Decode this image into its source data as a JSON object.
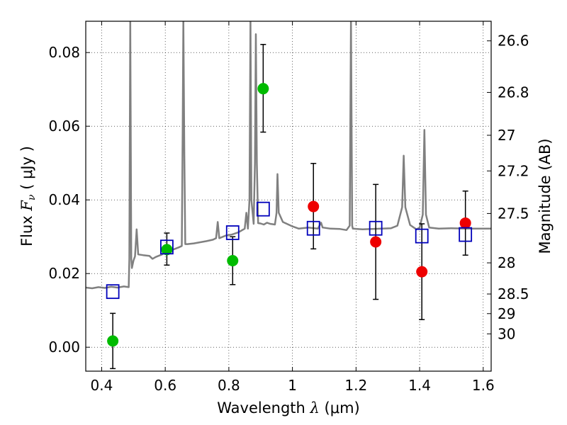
{
  "chart_data": {
    "type": "scatter",
    "xlabel_text": "Wavelength",
    "xlabel_symbol": "λ",
    "xlabel_unit": "(μm)",
    "ylabel_text": "Flux",
    "ylabel_symbol": "F",
    "ylabel_subscript": "ν",
    "ylabel_unit": "( μJy )",
    "y2label": "Magnitude (AB)",
    "xlim": [
      0.35,
      1.625
    ],
    "ylim": [
      -0.0065,
      0.0885
    ],
    "grid": true,
    "x_ticks": [
      0.4,
      0.6,
      0.8,
      1.0,
      1.2,
      1.4,
      1.6
    ],
    "x_tick_labels": [
      "0.4",
      "0.6",
      "0.8",
      "1",
      "1.2",
      "1.4",
      "1.6"
    ],
    "y_ticks": [
      0.0,
      0.02,
      0.04,
      0.06,
      0.08
    ],
    "y_tick_labels": [
      "0.00",
      "0.02",
      "0.04",
      "0.06",
      "0.08"
    ],
    "mag_ticks": [
      {
        "value": 26.6,
        "label": "26.6"
      },
      {
        "value": 26.8,
        "label": "26.8"
      },
      {
        "value": 27.0,
        "label": "27"
      },
      {
        "value": 27.2,
        "label": "27.2"
      },
      {
        "value": 27.5,
        "label": "27.5"
      },
      {
        "value": 28.0,
        "label": "28"
      },
      {
        "value": 28.5,
        "label": "28.5"
      },
      {
        "value": 29.0,
        "label": "29"
      },
      {
        "value": 30.0,
        "label": "30"
      }
    ],
    "model_spectrum": {
      "color": "#808080",
      "points": [
        [
          0.35,
          0.0162
        ],
        [
          0.37,
          0.016
        ],
        [
          0.39,
          0.0163
        ],
        [
          0.41,
          0.0161
        ],
        [
          0.43,
          0.0164
        ],
        [
          0.45,
          0.0162
        ],
        [
          0.47,
          0.0165
        ],
        [
          0.485,
          0.0163
        ],
        [
          0.487,
          0.024
        ],
        [
          0.49,
          0.089
        ],
        [
          0.493,
          0.024
        ],
        [
          0.495,
          0.0215
        ],
        [
          0.5,
          0.0235
        ],
        [
          0.505,
          0.0247
        ],
        [
          0.51,
          0.032
        ],
        [
          0.515,
          0.0252
        ],
        [
          0.53,
          0.025
        ],
        [
          0.55,
          0.0248
        ],
        [
          0.56,
          0.024
        ],
        [
          0.57,
          0.0245
        ],
        [
          0.59,
          0.0252
        ],
        [
          0.6,
          0.0257
        ],
        [
          0.615,
          0.0262
        ],
        [
          0.63,
          0.0267
        ],
        [
          0.645,
          0.0272
        ],
        [
          0.652,
          0.0275
        ],
        [
          0.655,
          0.06
        ],
        [
          0.657,
          0.089
        ],
        [
          0.66,
          0.052
        ],
        [
          0.663,
          0.028
        ],
        [
          0.67,
          0.028
        ],
        [
          0.69,
          0.0282
        ],
        [
          0.71,
          0.0285
        ],
        [
          0.73,
          0.0288
        ],
        [
          0.75,
          0.0292
        ],
        [
          0.76,
          0.0296
        ],
        [
          0.765,
          0.034
        ],
        [
          0.77,
          0.0296
        ],
        [
          0.79,
          0.0303
        ],
        [
          0.81,
          0.0306
        ],
        [
          0.83,
          0.0312
        ],
        [
          0.85,
          0.0322
        ],
        [
          0.855,
          0.0365
        ],
        [
          0.86,
          0.0322
        ],
        [
          0.865,
          0.04
        ],
        [
          0.868,
          0.089
        ],
        [
          0.871,
          0.04
        ],
        [
          0.878,
          0.0335
        ],
        [
          0.882,
          0.05
        ],
        [
          0.885,
          0.085
        ],
        [
          0.888,
          0.05
        ],
        [
          0.892,
          0.0337
        ],
        [
          0.9,
          0.0336
        ],
        [
          0.91,
          0.0333
        ],
        [
          0.92,
          0.0338
        ],
        [
          0.93,
          0.0335
        ],
        [
          0.945,
          0.0333
        ],
        [
          0.95,
          0.0365
        ],
        [
          0.953,
          0.047
        ],
        [
          0.957,
          0.0365
        ],
        [
          0.97,
          0.034
        ],
        [
          1.0,
          0.0328
        ],
        [
          1.02,
          0.0322
        ],
        [
          1.05,
          0.0325
        ],
        [
          1.08,
          0.0322
        ],
        [
          1.09,
          0.0338
        ],
        [
          1.095,
          0.0325
        ],
        [
          1.12,
          0.0322
        ],
        [
          1.15,
          0.0321
        ],
        [
          1.17,
          0.0318
        ],
        [
          1.18,
          0.033
        ],
        [
          1.184,
          0.089
        ],
        [
          1.188,
          0.033
        ],
        [
          1.19,
          0.0322
        ],
        [
          1.22,
          0.032
        ],
        [
          1.25,
          0.0321
        ],
        [
          1.28,
          0.0322
        ],
        [
          1.31,
          0.0323
        ],
        [
          1.33,
          0.033
        ],
        [
          1.345,
          0.038
        ],
        [
          1.35,
          0.052
        ],
        [
          1.355,
          0.038
        ],
        [
          1.37,
          0.0332
        ],
        [
          1.39,
          0.032
        ],
        [
          1.4,
          0.0325
        ],
        [
          1.41,
          0.036
        ],
        [
          1.415,
          0.059
        ],
        [
          1.42,
          0.036
        ],
        [
          1.43,
          0.0325
        ],
        [
          1.46,
          0.0322
        ],
        [
          1.5,
          0.0323
        ],
        [
          1.55,
          0.0322
        ],
        [
          1.6,
          0.0322
        ],
        [
          1.625,
          0.0322
        ]
      ]
    },
    "series": [
      {
        "marker": "circle",
        "color": "#00bb00",
        "points": [
          {
            "x": 0.435,
            "y": 0.0017,
            "yerr_low": 0.0075,
            "yerr_high": 0.0075
          },
          {
            "x": 0.605,
            "y": 0.0265,
            "yerr_low": 0.0042,
            "yerr_high": 0.0045
          },
          {
            "x": 0.812,
            "y": 0.0235,
            "yerr_low": 0.0065,
            "yerr_high": 0.0065
          },
          {
            "x": 0.908,
            "y": 0.0702,
            "yerr_low": 0.0118,
            "yerr_high": 0.012
          }
        ]
      },
      {
        "marker": "circle",
        "color": "#ee0000",
        "points": [
          {
            "x": 1.066,
            "y": 0.0382,
            "yerr_low": 0.0115,
            "yerr_high": 0.0117
          },
          {
            "x": 1.262,
            "y": 0.0286,
            "yerr_low": 0.0156,
            "yerr_high": 0.0156
          },
          {
            "x": 1.407,
            "y": 0.0205,
            "yerr_low": 0.013,
            "yerr_high": 0.013
          },
          {
            "x": 1.544,
            "y": 0.0337,
            "yerr_low": 0.0087,
            "yerr_high": 0.0087
          }
        ]
      },
      {
        "marker": "open-square",
        "color": "#0000bb",
        "points": [
          {
            "x": 0.435,
            "y": 0.0151
          },
          {
            "x": 0.605,
            "y": 0.0272
          },
          {
            "x": 0.812,
            "y": 0.0311
          },
          {
            "x": 0.908,
            "y": 0.0375
          },
          {
            "x": 1.066,
            "y": 0.0323
          },
          {
            "x": 1.262,
            "y": 0.0323
          },
          {
            "x": 1.407,
            "y": 0.0302
          },
          {
            "x": 1.544,
            "y": 0.0306
          }
        ]
      }
    ]
  }
}
